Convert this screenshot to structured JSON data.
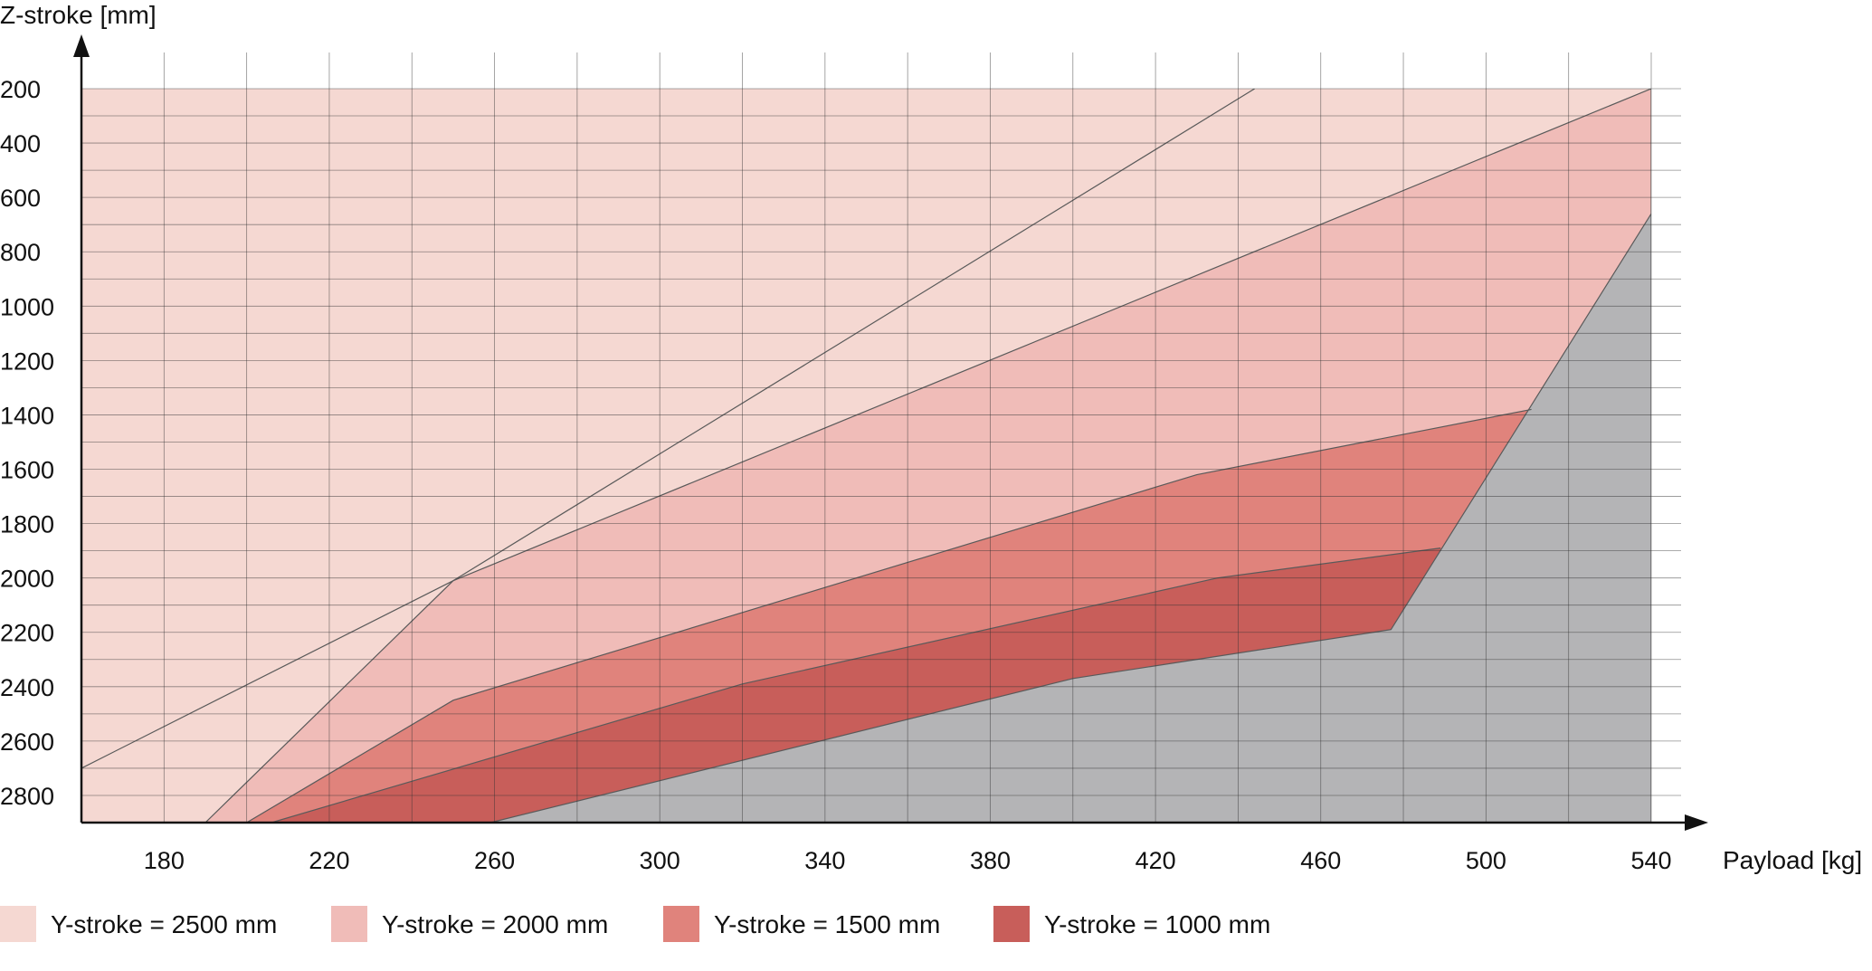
{
  "chart_data": {
    "type": "area",
    "title": "",
    "xlabel": "Payload [kg]",
    "ylabel": "Z-stroke [mm]",
    "xlim": [
      160,
      540
    ],
    "ylim": [
      200,
      2900
    ],
    "y_inverted": true,
    "x_ticks": [
      180,
      220,
      260,
      300,
      340,
      380,
      420,
      460,
      500,
      540
    ],
    "y_ticks": [
      200,
      400,
      600,
      800,
      1000,
      1200,
      1400,
      1600,
      1800,
      2000,
      2200,
      2400,
      2600,
      2800
    ],
    "grid": true,
    "legend_position": "bottom",
    "series": [
      {
        "name": "Y-stroke = 2500 mm",
        "color": "#f5d8d2",
        "x": [
          160,
          250,
          444
        ],
        "y": [
          2700,
          2010,
          200
        ]
      },
      {
        "name": "Y-stroke = 2000 mm",
        "color": "#f0bcb8",
        "x": [
          190,
          250,
          540
        ],
        "y": [
          2900,
          2010,
          200
        ]
      },
      {
        "name": "Y-stroke = 1500 mm",
        "color": "#e0837c",
        "x": [
          200,
          250,
          430,
          511
        ],
        "y": [
          2900,
          2450,
          1620,
          1380
        ]
      },
      {
        "name": "Y-stroke = 1000 mm",
        "color": "#c85e5a",
        "x": [
          206,
          320,
          435,
          489
        ],
        "y": [
          2900,
          2390,
          2000,
          1890
        ]
      }
    ],
    "limit_region": {
      "color": "#b4b4b6",
      "x": [
        259,
        400,
        477,
        540
      ],
      "y": [
        2900,
        2370,
        2190,
        660
      ]
    }
  }
}
